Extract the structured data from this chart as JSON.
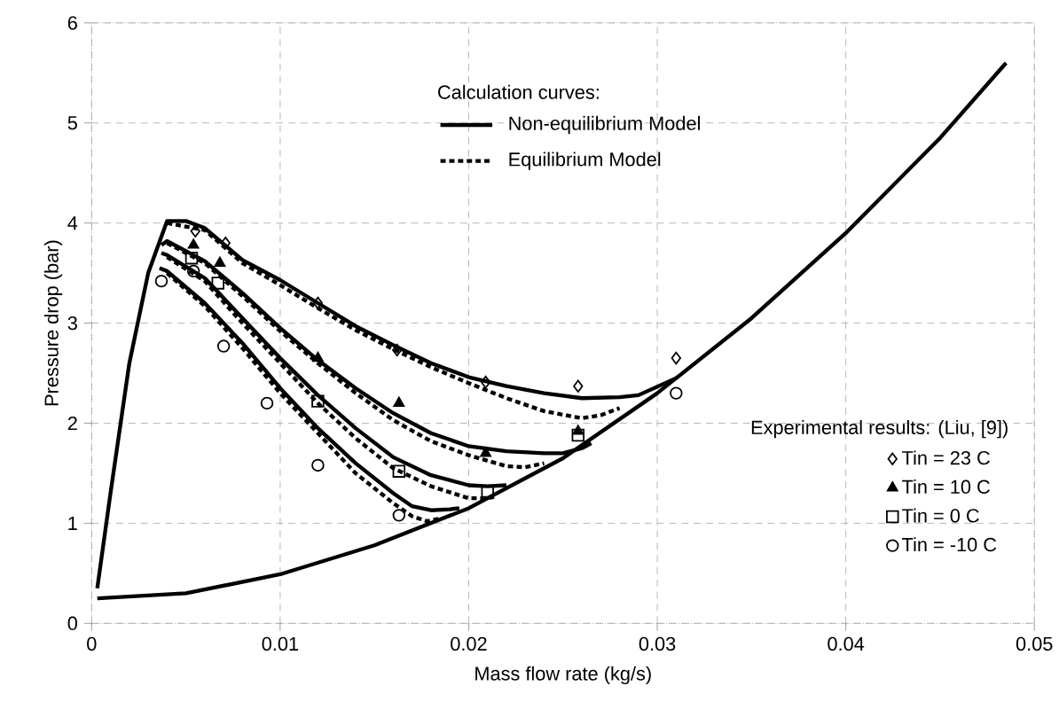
{
  "chart_data": {
    "type": "line",
    "xlabel": "Mass flow rate (kg/s)",
    "ylabel": "Pressure drop (bar)",
    "xlim": [
      0,
      0.05
    ],
    "ylim": [
      0,
      6
    ],
    "xticks": [
      0,
      0.01,
      0.02,
      0.03,
      0.04,
      0.05
    ],
    "yticks": [
      0,
      1,
      2,
      3,
      4,
      5,
      6
    ],
    "grid": true,
    "legend": "right",
    "legend_title": "Experimental results: (Liu, [9])",
    "annotations": [
      "Calculation curves:"
    ],
    "series": [
      {
        "color": "#000000",
        "line_style": "solid",
        "x": [
          0.0003,
          0.005,
          0.01,
          0.015,
          0.02,
          0.025,
          0.03,
          0.035,
          0.04,
          0.045,
          0.0485
        ],
        "values": [
          0.25,
          0.3,
          0.49,
          0.78,
          1.15,
          1.65,
          2.3,
          3.05,
          3.9,
          4.85,
          5.6
        ]
      },
      {
        "name": "Non-equilibrium Model",
        "color": "#000000",
        "line_style": "solid",
        "x": [
          0.0003,
          0.001,
          0.002,
          0.003,
          0.004,
          0.005,
          0.006,
          0.008,
          0.01,
          0.012,
          0.014,
          0.016,
          0.018,
          0.02,
          0.022,
          0.024,
          0.026,
          0.028,
          0.029,
          0.031
        ],
        "values": [
          0.35,
          1.3,
          2.6,
          3.5,
          4.02,
          4.02,
          3.95,
          3.63,
          3.43,
          3.2,
          2.97,
          2.78,
          2.6,
          2.46,
          2.37,
          2.3,
          2.25,
          2.26,
          2.28,
          2.45
        ]
      },
      {
        "color": "#000000",
        "line_style": "solid",
        "x": [
          0.0037,
          0.004,
          0.006,
          0.008,
          0.01,
          0.012,
          0.014,
          0.016,
          0.018,
          0.02,
          0.022,
          0.024,
          0.025,
          0.026,
          0.0265
        ],
        "values": [
          3.78,
          3.82,
          3.62,
          3.3,
          2.95,
          2.63,
          2.35,
          2.1,
          1.9,
          1.77,
          1.72,
          1.7,
          1.7,
          1.75,
          1.8
        ]
      },
      {
        "color": "#000000",
        "line_style": "solid",
        "x": [
          0.0037,
          0.004,
          0.006,
          0.008,
          0.01,
          0.012,
          0.014,
          0.016,
          0.018,
          0.02,
          0.021,
          0.022
        ],
        "values": [
          3.7,
          3.68,
          3.45,
          3.05,
          2.65,
          2.28,
          1.95,
          1.66,
          1.48,
          1.38,
          1.37,
          1.38
        ]
      },
      {
        "color": "#000000",
        "line_style": "solid",
        "x": [
          0.0036,
          0.004,
          0.006,
          0.008,
          0.01,
          0.012,
          0.014,
          0.016,
          0.017,
          0.018,
          0.019,
          0.0195
        ],
        "values": [
          3.55,
          3.52,
          3.2,
          2.8,
          2.35,
          1.95,
          1.6,
          1.3,
          1.17,
          1.13,
          1.14,
          1.15
        ]
      },
      {
        "name": "Equilibrium Model",
        "color": "#000000",
        "line_style": "dashed",
        "x": [
          0.004,
          0.006,
          0.008,
          0.01,
          0.012,
          0.014,
          0.016,
          0.018,
          0.02,
          0.022,
          0.024,
          0.026,
          0.027,
          0.028
        ],
        "values": [
          4.0,
          3.93,
          3.6,
          3.38,
          3.15,
          2.93,
          2.74,
          2.56,
          2.4,
          2.25,
          2.12,
          2.05,
          2.08,
          2.15
        ]
      },
      {
        "color": "#000000",
        "line_style": "dashed",
        "x": [
          0.004,
          0.006,
          0.008,
          0.01,
          0.012,
          0.014,
          0.016,
          0.018,
          0.02,
          0.022,
          0.023,
          0.024
        ],
        "values": [
          3.8,
          3.6,
          3.27,
          2.92,
          2.6,
          2.3,
          2.03,
          1.82,
          1.68,
          1.57,
          1.56,
          1.6
        ]
      },
      {
        "color": "#000000",
        "line_style": "dashed",
        "x": [
          0.004,
          0.006,
          0.008,
          0.01,
          0.012,
          0.014,
          0.016,
          0.018,
          0.02,
          0.021,
          0.0215
        ],
        "values": [
          3.66,
          3.42,
          3.0,
          2.6,
          2.2,
          1.85,
          1.55,
          1.37,
          1.25,
          1.25,
          1.27
        ]
      },
      {
        "color": "#000000",
        "line_style": "dashed",
        "x": [
          0.004,
          0.006,
          0.008,
          0.01,
          0.012,
          0.014,
          0.016,
          0.017,
          0.0178,
          0.0185
        ],
        "values": [
          3.5,
          3.17,
          2.75,
          2.3,
          1.9,
          1.5,
          1.2,
          1.07,
          1.02,
          1.05
        ]
      },
      {
        "type": "scatter",
        "name": "Tin = 23 C",
        "color": "#000000",
        "marker": "diamond",
        "x": [
          0.0055,
          0.0071,
          0.012,
          0.0162,
          0.0209,
          0.0258,
          0.031
        ],
        "values": [
          3.92,
          3.8,
          3.2,
          2.73,
          2.41,
          2.37,
          2.65
        ]
      },
      {
        "type": "scatter",
        "name": "Tin = 10 C",
        "color": "#000000",
        "marker": "triangle",
        "x": [
          0.0054,
          0.0068,
          0.012,
          0.0163,
          0.0209,
          0.0258
        ],
        "values": [
          3.78,
          3.6,
          2.65,
          2.2,
          1.7,
          1.92
        ]
      },
      {
        "type": "scatter",
        "name": "Tin = 0 C",
        "color": "#000000",
        "marker": "square",
        "x": [
          0.0053,
          0.0067,
          0.012,
          0.0163,
          0.021,
          0.0258
        ],
        "values": [
          3.65,
          3.4,
          2.22,
          1.52,
          1.32,
          1.88
        ]
      },
      {
        "type": "scatter",
        "name": "Tin = -10 C",
        "color": "#000000",
        "marker": "circle",
        "x": [
          0.0037,
          0.0054,
          0.007,
          0.0093,
          0.012,
          0.0163,
          0.031
        ],
        "values": [
          3.42,
          3.52,
          2.77,
          2.2,
          1.58,
          1.08,
          2.3
        ]
      }
    ]
  }
}
